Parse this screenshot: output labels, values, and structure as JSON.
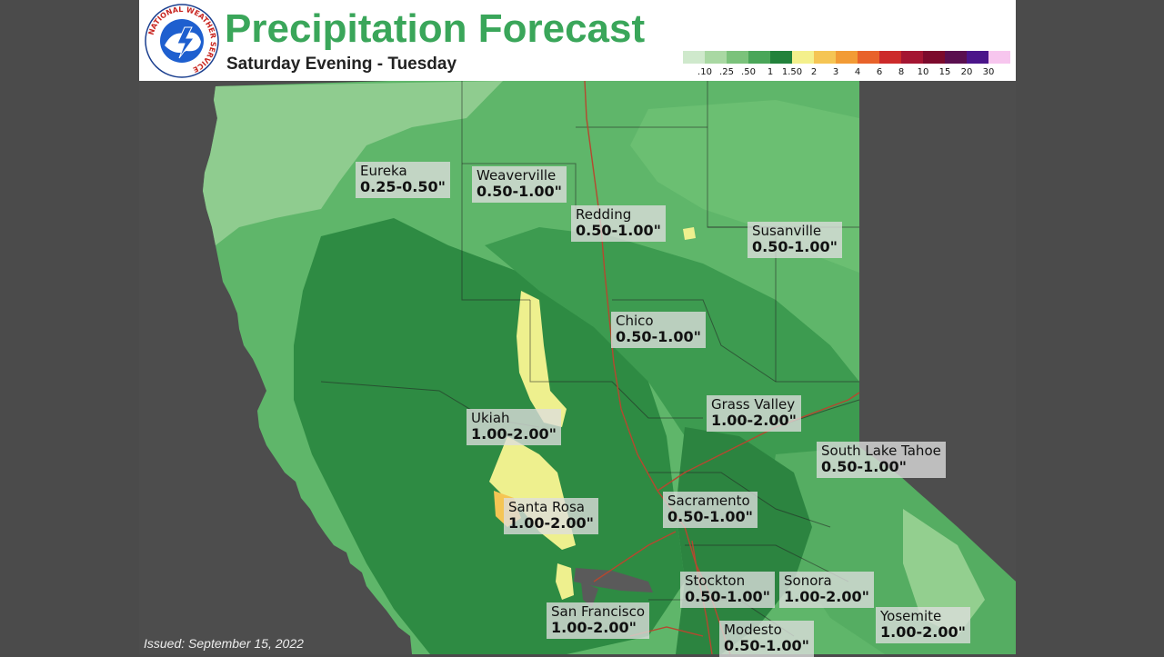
{
  "header": {
    "title": "Precipitation Forecast",
    "subtitle": "Saturday Evening - Tuesday",
    "logo_text": "NATIONAL WEATHER SERVICE"
  },
  "legend": {
    "ticks": [
      ".10",
      ".25",
      ".50",
      "1",
      "1.50",
      "2",
      "3",
      "4",
      "6",
      "8",
      "10",
      "15",
      "20",
      "30"
    ],
    "colors": [
      "#cfe9cc",
      "#a9d8a3",
      "#7bc27b",
      "#4aa659",
      "#22823b",
      "#f4f08c",
      "#f5c554",
      "#f29b35",
      "#e8622a",
      "#cc2a2a",
      "#a41532",
      "#7c0a2c",
      "#5a0f4f",
      "#4b158a",
      "#f7c6ee"
    ]
  },
  "cities": [
    {
      "name": "Eureka",
      "amount": "0.25-0.50\""
    },
    {
      "name": "Weaverville",
      "amount": "0.50-1.00\""
    },
    {
      "name": "Redding",
      "amount": "0.50-1.00\""
    },
    {
      "name": "Susanville",
      "amount": "0.50-1.00\""
    },
    {
      "name": "Chico",
      "amount": "0.50-1.00\""
    },
    {
      "name": "Grass Valley",
      "amount": "1.00-2.00\""
    },
    {
      "name": "Ukiah",
      "amount": "1.00-2.00\""
    },
    {
      "name": "South Lake Tahoe",
      "amount": "0.50-1.00\""
    },
    {
      "name": "Sacramento",
      "amount": "0.50-1.00\""
    },
    {
      "name": "Santa Rosa",
      "amount": "1.00-2.00\""
    },
    {
      "name": "Stockton",
      "amount": "0.50-1.00\""
    },
    {
      "name": "Sonora",
      "amount": "1.00-2.00\""
    },
    {
      "name": "San Francisco",
      "amount": "1.00-2.00\""
    },
    {
      "name": "Yosemite",
      "amount": "1.00-2.00\""
    },
    {
      "name": "Modesto",
      "amount": "0.50-1.00\""
    }
  ],
  "footer": {
    "issued": "Issued: September 15, 2022"
  }
}
